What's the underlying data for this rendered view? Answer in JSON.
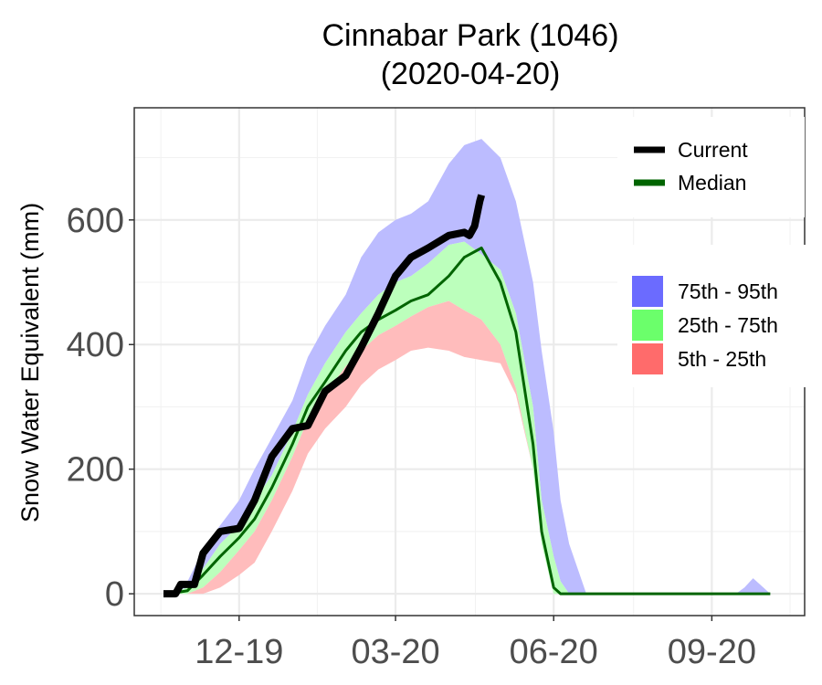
{
  "chart_data": {
    "type": "area",
    "title": "Cinnabar Park (1046)",
    "subtitle": "(2020-04-20)",
    "xlabel": "",
    "ylabel": "Snow Water Equivalent (mm)",
    "x_ticks": [
      "12-19",
      "03-20",
      "06-20",
      "09-20"
    ],
    "x_tick_dates": [
      "2019-12-01",
      "2020-03-01",
      "2020-06-01",
      "2020-09-01"
    ],
    "xlim": [
      "2019-10-01",
      "2020-10-25"
    ],
    "ylim": [
      -35,
      780
    ],
    "y_ticks": [
      0,
      200,
      400,
      600
    ],
    "grid": true,
    "legend_lines": [
      {
        "name": "Current",
        "color": "#000000"
      },
      {
        "name": "Median",
        "color": "#006400"
      }
    ],
    "legend_bands": [
      {
        "name": "75th - 95th",
        "color": "#6b6bff"
      },
      {
        "name": "25th - 75th",
        "color": "#6bff6b"
      },
      {
        "name": "5th - 25th",
        "color": "#ff6b6b"
      }
    ],
    "legend_position": "top-right",
    "band_colors": {
      "p5_25": "#ffbcbc",
      "p25_75": "#bcffbc",
      "p75_95": "#bcbcff"
    },
    "x": [
      "2019-10-21",
      "2019-11-01",
      "2019-11-10",
      "2019-11-20",
      "2019-12-01",
      "2019-12-10",
      "2019-12-20",
      "2020-01-01",
      "2020-01-10",
      "2020-01-20",
      "2020-02-01",
      "2020-02-10",
      "2020-02-20",
      "2020-03-01",
      "2020-03-10",
      "2020-03-20",
      "2020-04-01",
      "2020-04-10",
      "2020-04-20",
      "2020-05-01",
      "2020-05-10",
      "2020-05-20",
      "2020-05-25",
      "2020-06-01",
      "2020-06-05",
      "2020-06-10",
      "2020-06-20",
      "2020-06-25",
      "2020-07-01",
      "2020-07-15",
      "2020-08-01",
      "2020-08-15",
      "2020-09-01",
      "2020-09-15",
      "2020-09-20",
      "2020-09-25",
      "2020-10-01",
      "2020-10-05"
    ],
    "p5": [
      0,
      0,
      0,
      10,
      30,
      50,
      100,
      165,
      225,
      265,
      300,
      335,
      360,
      375,
      390,
      395,
      390,
      380,
      375,
      370,
      320,
      200,
      80,
      0,
      0,
      0,
      0,
      0,
      0,
      0,
      0,
      0,
      0,
      0,
      0,
      0,
      0,
      0
    ],
    "p25": [
      0,
      0,
      10,
      35,
      70,
      100,
      150,
      220,
      280,
      320,
      365,
      390,
      415,
      430,
      445,
      460,
      470,
      455,
      440,
      400,
      330,
      200,
      80,
      0,
      0,
      0,
      0,
      0,
      0,
      0,
      0,
      0,
      0,
      0,
      0,
      0,
      0,
      0
    ],
    "p75": [
      0,
      10,
      40,
      80,
      110,
      150,
      190,
      260,
      320,
      370,
      420,
      450,
      480,
      500,
      510,
      530,
      560,
      565,
      545,
      520,
      450,
      300,
      150,
      60,
      20,
      0,
      0,
      0,
      0,
      0,
      0,
      0,
      0,
      0,
      0,
      0,
      0,
      0
    ],
    "p95": [
      0,
      20,
      70,
      110,
      150,
      200,
      250,
      310,
      380,
      430,
      480,
      540,
      580,
      600,
      610,
      630,
      690,
      720,
      730,
      700,
      630,
      500,
      390,
      260,
      150,
      80,
      0,
      0,
      0,
      0,
      0,
      0,
      0,
      0,
      10,
      25,
      10,
      0
    ],
    "median": [
      0,
      5,
      30,
      60,
      90,
      120,
      170,
      240,
      300,
      340,
      390,
      420,
      440,
      455,
      470,
      480,
      510,
      540,
      555,
      500,
      420,
      240,
      100,
      10,
      0,
      0,
      0,
      0,
      0,
      0,
      0,
      0,
      0,
      0,
      0,
      0,
      0,
      0
    ],
    "current_x": [
      "2019-10-18",
      "2019-10-25",
      "2019-10-28",
      "2019-11-05",
      "2019-11-10",
      "2019-11-20",
      "2019-12-01",
      "2019-12-10",
      "2019-12-20",
      "2020-01-01",
      "2020-01-10",
      "2020-01-20",
      "2020-02-01",
      "2020-02-10",
      "2020-02-20",
      "2020-03-01",
      "2020-03-10",
      "2020-03-20",
      "2020-04-01",
      "2020-04-10",
      "2020-04-13",
      "2020-04-16",
      "2020-04-19",
      "2020-04-20"
    ],
    "current": [
      0,
      0,
      15,
      15,
      65,
      100,
      105,
      150,
      220,
      265,
      270,
      325,
      350,
      395,
      450,
      510,
      540,
      555,
      575,
      580,
      575,
      590,
      630,
      640
    ]
  }
}
